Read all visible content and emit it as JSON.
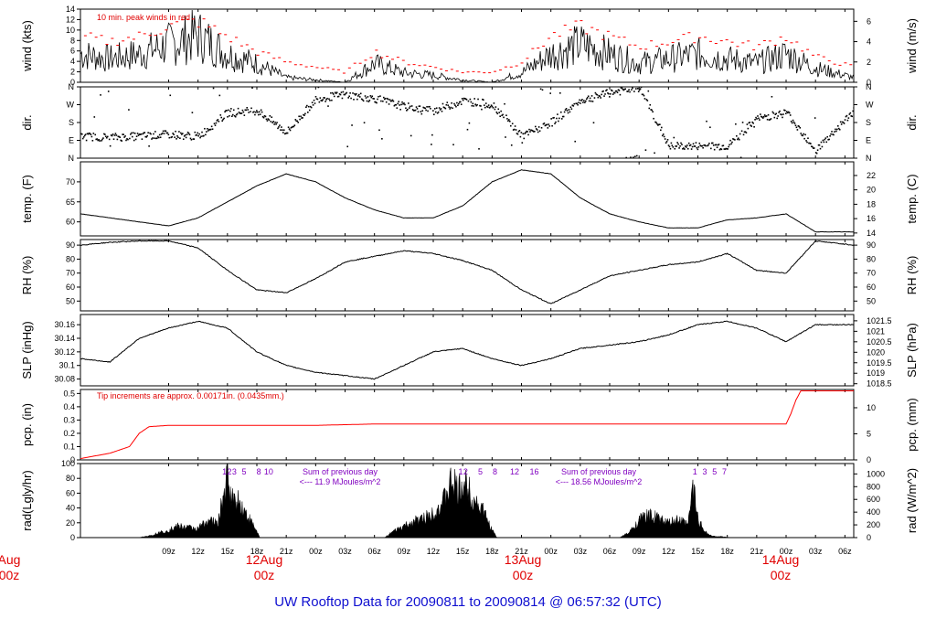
{
  "page": {
    "title": "UW Rooftop Data for 20090811  to  20090814 @ 06:57:32  (UTC)"
  },
  "colors": {
    "trace": "#000000",
    "peak": "#ff0000",
    "annotation_red": "#e00000",
    "annotation_purple": "#8000c0",
    "title_blue": "#1010d0"
  },
  "time_axis": {
    "ticks": [
      "09z",
      "12z",
      "15z",
      "18z",
      "21z",
      "00z",
      "03z",
      "06z",
      "09z",
      "12z",
      "15z",
      "18z",
      "21z",
      "00z",
      "03z",
      "06z",
      "09z",
      "12z",
      "15z",
      "18z",
      "21z",
      "00z",
      "03z",
      "06z"
    ],
    "day_labels": [
      {
        "line1": "Aug",
        "line2": "00z"
      },
      {
        "line1": "12Aug",
        "line2": "00z"
      },
      {
        "line1": "13Aug",
        "line2": "00z"
      },
      {
        "line1": "14Aug",
        "line2": "00z"
      }
    ]
  },
  "chart_data": [
    {
      "id": "wind",
      "type": "line",
      "ylabel_left": "wind (kts)",
      "ylabel_right": "wind (m/s)",
      "ylim": [
        0,
        14
      ],
      "yticks": [
        0,
        2,
        4,
        6,
        8,
        10,
        12,
        14
      ],
      "right_ylim": [
        0,
        7.2
      ],
      "right_ticks": [
        0,
        2,
        4,
        6
      ],
      "annotation": "10 min. peak winds in red",
      "x_hours": [
        0,
        3,
        6,
        9,
        12,
        15,
        18,
        21,
        24,
        27,
        30,
        33,
        36,
        39,
        42,
        45,
        48,
        51,
        54,
        57,
        60,
        63,
        66,
        69,
        72,
        75,
        78.9
      ],
      "values": [
        6,
        5,
        6,
        8,
        10,
        6,
        4,
        1,
        0.5,
        0,
        4,
        2,
        1.5,
        0.5,
        0,
        2,
        6,
        8,
        6,
        4,
        5,
        6,
        5,
        4,
        6,
        3,
        1
      ],
      "peak_values": [
        9,
        8,
        9,
        11,
        12,
        9,
        6,
        4,
        3,
        2,
        6,
        4,
        3,
        2,
        2,
        4,
        9,
        11,
        9,
        7,
        8,
        9,
        8,
        7,
        9,
        5,
        3
      ]
    },
    {
      "id": "dir",
      "type": "scatter",
      "ylabel_left": "dir.",
      "ylabel_right": "dir.",
      "ylim": [
        0,
        360
      ],
      "ytick_labels": [
        "N",
        "E",
        "S",
        "W",
        "N"
      ],
      "x_hours": [
        0,
        3,
        6,
        9,
        12,
        15,
        18,
        21,
        24,
        27,
        30,
        33,
        36,
        39,
        42,
        45,
        48,
        51,
        54,
        57,
        60,
        63,
        66,
        69,
        72,
        75,
        78.9
      ],
      "values": [
        110,
        105,
        110,
        120,
        110,
        230,
        240,
        130,
        300,
        320,
        300,
        260,
        240,
        290,
        270,
        110,
        180,
        290,
        330,
        355,
        60,
        60,
        60,
        200,
        230,
        40,
        240
      ]
    },
    {
      "id": "temp",
      "type": "line",
      "ylabel_left": "temp. (F)",
      "ylabel_right": "temp. (C)",
      "ylim": [
        56.5,
        75
      ],
      "yticks": [
        60,
        65,
        70
      ],
      "right_ylim": [
        13.6,
        23.9
      ],
      "right_ticks": [
        14,
        16,
        18,
        20,
        22
      ],
      "x_hours": [
        0,
        3,
        6,
        9,
        12,
        15,
        18,
        21,
        24,
        27,
        30,
        33,
        36,
        39,
        42,
        45,
        48,
        51,
        54,
        57,
        60,
        63,
        66,
        69,
        72,
        75,
        78.9
      ],
      "values": [
        62,
        61,
        60,
        59,
        61,
        65,
        69,
        72,
        70,
        66,
        63,
        61,
        61,
        64,
        70,
        73,
        72,
        66,
        62,
        60,
        58.5,
        58.5,
        60.5,
        61,
        62,
        57.5,
        57.5
      ]
    },
    {
      "id": "rh",
      "type": "line",
      "ylabel_left": "RH (%)",
      "ylabel_right": "RH (%)",
      "ylim": [
        43,
        94
      ],
      "yticks": [
        50,
        60,
        70,
        80,
        90
      ],
      "right_ylim": [
        43,
        94
      ],
      "right_ticks": [
        50,
        60,
        70,
        80,
        90
      ],
      "x_hours": [
        0,
        3,
        6,
        9,
        12,
        15,
        18,
        21,
        24,
        27,
        30,
        33,
        36,
        39,
        42,
        45,
        48,
        51,
        54,
        57,
        60,
        63,
        66,
        69,
        72,
        75,
        78.9
      ],
      "values": [
        90,
        92,
        93,
        93,
        88,
        72,
        58,
        56,
        66,
        78,
        82,
        86,
        84,
        79,
        72,
        58,
        48,
        58,
        68,
        72,
        76,
        78,
        84,
        72,
        70,
        93,
        90
      ]
    },
    {
      "id": "slp",
      "type": "line",
      "ylabel_left": "SLP (inHg)",
      "ylabel_right": "SLP (hPa)",
      "ylim": [
        30.07,
        30.175
      ],
      "yticks": [
        30.08,
        30.1,
        30.12,
        30.14,
        30.16
      ],
      "right_ylim": [
        1018.4,
        1021.8
      ],
      "right_ticks": [
        1018.5,
        1019,
        1019.5,
        1020,
        1020.5,
        1021,
        1021.5
      ],
      "x_hours": [
        0,
        3,
        6,
        9,
        12,
        15,
        18,
        21,
        24,
        27,
        30,
        33,
        36,
        39,
        42,
        45,
        48,
        51,
        54,
        57,
        60,
        63,
        66,
        69,
        72,
        75,
        78.9
      ],
      "values": [
        30.11,
        30.105,
        30.14,
        30.155,
        30.165,
        30.155,
        30.12,
        30.1,
        30.09,
        30.085,
        30.08,
        30.1,
        30.12,
        30.125,
        30.11,
        30.1,
        30.11,
        30.125,
        30.13,
        30.135,
        30.145,
        30.16,
        30.165,
        30.155,
        30.135,
        30.16,
        30.16
      ]
    },
    {
      "id": "pcp",
      "type": "line",
      "ylabel_left": "pcp. (in)",
      "ylabel_right": "pcp. (mm)",
      "ylim": [
        0,
        0.53
      ],
      "yticks": [
        0,
        0.1,
        0.2,
        0.3,
        0.4,
        0.5
      ],
      "right_ylim": [
        0,
        13.5
      ],
      "right_ticks": [
        0,
        5,
        10
      ],
      "annotation": "Tip increments are approx. 0.00171in. (0.0435mm.)",
      "x_hours": [
        0,
        3,
        5,
        6,
        7,
        9,
        12,
        24,
        30,
        35,
        40,
        48,
        60,
        72,
        72.5,
        73,
        73.5,
        78.9
      ],
      "values": [
        0.01,
        0.05,
        0.1,
        0.2,
        0.25,
        0.26,
        0.26,
        0.26,
        0.27,
        0.27,
        0.27,
        0.27,
        0.27,
        0.27,
        0.35,
        0.45,
        0.52,
        0.52
      ]
    },
    {
      "id": "rad",
      "type": "area",
      "ylabel_left": "rad(Lgly/hr)",
      "ylabel_right": "rad (W/m^2)",
      "ylim": [
        0,
        100
      ],
      "yticks": [
        0,
        20,
        40,
        60,
        80,
        100
      ],
      "right_ylim": [
        0,
        1163
      ],
      "right_ticks": [
        0,
        200,
        400,
        600,
        800,
        1000
      ],
      "x_hours": [
        6,
        7,
        9,
        10,
        12,
        13,
        14,
        15,
        15.5,
        16,
        17,
        18,
        18.3,
        25,
        31,
        32,
        34,
        35,
        36,
        37,
        38,
        38.5,
        39,
        39.5,
        40,
        41,
        42,
        42.5,
        49,
        55,
        56,
        57,
        58,
        59,
        60,
        61,
        62,
        62.5,
        63,
        63.5,
        64,
        64.5,
        65,
        66.5
      ],
      "values": [
        0,
        3,
        12,
        18,
        14,
        28,
        22,
        95,
        60,
        62,
        35,
        10,
        0,
        0,
        0,
        10,
        25,
        30,
        40,
        55,
        92,
        70,
        85,
        80,
        65,
        45,
        12,
        0,
        0,
        0,
        8,
        28,
        35,
        30,
        22,
        28,
        20,
        84,
        30,
        15,
        6,
        2,
        2,
        0
      ],
      "day_sums": [
        {
          "label": "Sum of previous day",
          "value": "<--- 11.9 MJoules/m^2"
        },
        {
          "label": "Sum of previous day",
          "value": "<--- 18.56 MJoules/m^2"
        }
      ],
      "hour_labels": [
        [
          "1",
          "2",
          "3",
          "5",
          "8",
          "10"
        ],
        [
          "1",
          "2",
          "5",
          "8",
          "12",
          "16"
        ],
        [
          "1",
          "3",
          "5",
          "7"
        ]
      ]
    }
  ]
}
